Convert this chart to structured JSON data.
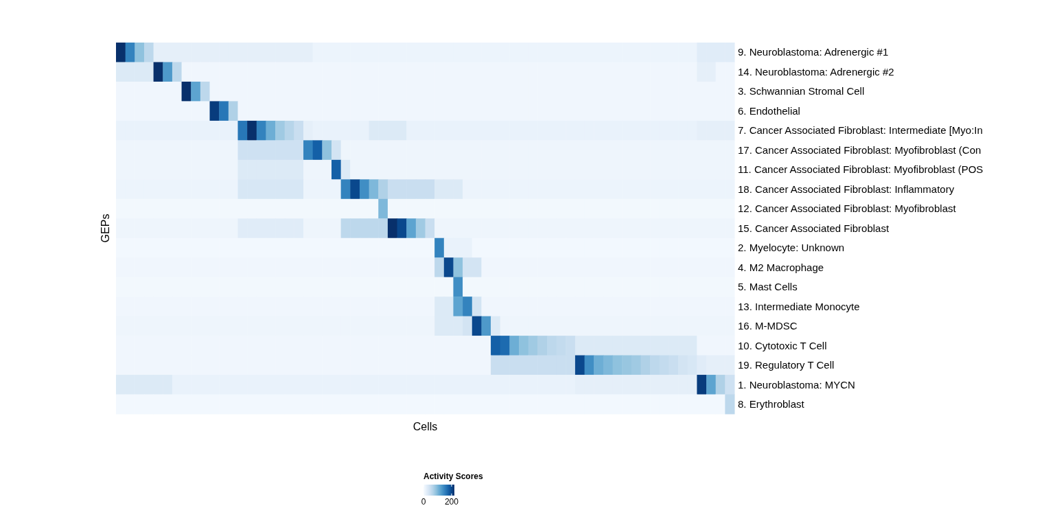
{
  "chart_data": {
    "type": "heatmap",
    "xlabel": "Cells",
    "ylabel": "GEPs",
    "clabel": "Activity Scores",
    "clim": [
      0,
      220
    ],
    "cticks": [
      0,
      200
    ],
    "categories": [
      null,
      null,
      null,
      null,
      null,
      null,
      null,
      null,
      null,
      null,
      null,
      null,
      null,
      null,
      null,
      null,
      null,
      null,
      null,
      null,
      null,
      null,
      null,
      null,
      null,
      null,
      null,
      null,
      null,
      null,
      null,
      null,
      null,
      null,
      null,
      null,
      null,
      null,
      null,
      null,
      null,
      null,
      null,
      null,
      null,
      null,
      null,
      null,
      null,
      null,
      null,
      null,
      null,
      null,
      null,
      null,
      null,
      null,
      null,
      null,
      null,
      null,
      null,
      null,
      null,
      null
    ],
    "y_categories": [
      "9. Neuroblastoma: Adrenergic #1",
      "14. Neuroblastoma: Adrenergic #2",
      "3. Schwannian Stromal Cell",
      "6. Endothelial",
      "7. Cancer Associated Fibroblast: Intermediate [Myo:In",
      "17. Cancer Associated Fibroblast: Myofibroblast (Con",
      "11. Cancer Associated Fibroblast: Myofibroblast (POS",
      "18. Cancer Associated Fibroblast: Inflammatory",
      "12. Cancer Associated Fibroblast: Myofibroblast",
      "15. Cancer Associated Fibroblast",
      "2. Myelocyte: Unknown",
      "4. M2 Macrophage",
      "5. Mast Cells",
      "13. Intermediate Monocyte",
      "16. M-MDSC",
      "10. Cytotoxic T Cell",
      "19. Regulatory T Cell",
      "1. Neuroblastoma: MYCN",
      "8. Erythroblast"
    ],
    "cells": [
      [
        220,
        150,
        90,
        60,
        20,
        20,
        20,
        20,
        20,
        20,
        20,
        20,
        20,
        20,
        20,
        20,
        20,
        20,
        20,
        20,
        20,
        12,
        12,
        12,
        12,
        12,
        12,
        12,
        12,
        12,
        12,
        12,
        12,
        12,
        12,
        12,
        12,
        12,
        12,
        12,
        12,
        12,
        12,
        12,
        12,
        12,
        12,
        12,
        12,
        12,
        12,
        12,
        12,
        12,
        12,
        12,
        12,
        12,
        12,
        12,
        12,
        12,
        25,
        25,
        25,
        25
      ],
      [
        30,
        30,
        30,
        30,
        220,
        130,
        60,
        8,
        8,
        8,
        8,
        8,
        8,
        8,
        8,
        8,
        8,
        8,
        8,
        8,
        8,
        8,
        8,
        8,
        8,
        8,
        8,
        8,
        8,
        8,
        8,
        8,
        8,
        8,
        8,
        8,
        8,
        8,
        8,
        8,
        8,
        8,
        8,
        8,
        8,
        8,
        8,
        8,
        8,
        8,
        8,
        8,
        8,
        8,
        8,
        8,
        8,
        8,
        8,
        8,
        8,
        8,
        20,
        20,
        8,
        8
      ],
      [
        8,
        8,
        8,
        8,
        8,
        8,
        8,
        220,
        120,
        60,
        8,
        8,
        8,
        8,
        8,
        8,
        8,
        8,
        8,
        8,
        8,
        8,
        8,
        8,
        8,
        8,
        8,
        8,
        8,
        8,
        8,
        8,
        8,
        8,
        8,
        8,
        8,
        8,
        8,
        8,
        8,
        8,
        8,
        8,
        8,
        8,
        8,
        8,
        8,
        8,
        8,
        8,
        8,
        8,
        8,
        8,
        8,
        8,
        8,
        8,
        8,
        8,
        8,
        8,
        8,
        8
      ],
      [
        8,
        8,
        8,
        8,
        8,
        8,
        8,
        8,
        8,
        8,
        210,
        160,
        70,
        8,
        8,
        8,
        8,
        8,
        8,
        8,
        8,
        8,
        8,
        8,
        8,
        8,
        8,
        8,
        8,
        8,
        8,
        8,
        8,
        8,
        8,
        8,
        8,
        8,
        8,
        8,
        8,
        8,
        8,
        8,
        8,
        8,
        8,
        8,
        8,
        8,
        8,
        8,
        8,
        8,
        8,
        8,
        8,
        8,
        8,
        8,
        8,
        8,
        8,
        8,
        8,
        8
      ],
      [
        15,
        15,
        15,
        15,
        15,
        15,
        15,
        15,
        15,
        15,
        15,
        15,
        15,
        160,
        220,
        150,
        110,
        80,
        65,
        50,
        20,
        15,
        15,
        15,
        15,
        15,
        15,
        30,
        30,
        30,
        30,
        15,
        15,
        15,
        15,
        15,
        15,
        15,
        15,
        15,
        15,
        15,
        15,
        15,
        15,
        15,
        15,
        15,
        15,
        15,
        15,
        15,
        15,
        15,
        15,
        15,
        15,
        15,
        15,
        15,
        15,
        15,
        20,
        20,
        20,
        20
      ],
      [
        10,
        10,
        10,
        10,
        10,
        10,
        10,
        10,
        10,
        10,
        10,
        10,
        10,
        45,
        45,
        45,
        45,
        45,
        45,
        45,
        150,
        180,
        90,
        40,
        10,
        10,
        10,
        10,
        10,
        10,
        10,
        10,
        10,
        10,
        10,
        10,
        10,
        10,
        10,
        10,
        10,
        10,
        10,
        10,
        10,
        10,
        10,
        10,
        10,
        10,
        10,
        10,
        10,
        10,
        10,
        10,
        10,
        10,
        10,
        10,
        10,
        10,
        10,
        10,
        10,
        10
      ],
      [
        10,
        10,
        10,
        10,
        10,
        10,
        10,
        10,
        10,
        10,
        10,
        10,
        10,
        30,
        30,
        30,
        30,
        30,
        30,
        30,
        10,
        10,
        10,
        180,
        30,
        10,
        10,
        10,
        10,
        10,
        10,
        10,
        10,
        10,
        10,
        10,
        10,
        10,
        10,
        10,
        10,
        10,
        10,
        10,
        10,
        10,
        10,
        10,
        10,
        10,
        10,
        10,
        10,
        10,
        10,
        10,
        10,
        10,
        10,
        10,
        10,
        10,
        10,
        10,
        10,
        10
      ],
      [
        12,
        12,
        12,
        12,
        12,
        12,
        12,
        12,
        12,
        12,
        12,
        12,
        12,
        35,
        35,
        35,
        35,
        35,
        35,
        35,
        12,
        12,
        12,
        12,
        150,
        200,
        140,
        100,
        70,
        50,
        50,
        50,
        50,
        50,
        30,
        30,
        30,
        12,
        12,
        12,
        12,
        12,
        12,
        12,
        12,
        12,
        12,
        12,
        12,
        12,
        12,
        12,
        12,
        12,
        12,
        12,
        12,
        12,
        12,
        12,
        12,
        12,
        12,
        12,
        12,
        12
      ],
      [
        6,
        6,
        6,
        6,
        6,
        6,
        6,
        6,
        6,
        6,
        6,
        6,
        6,
        6,
        6,
        6,
        6,
        6,
        6,
        6,
        6,
        6,
        6,
        6,
        6,
        6,
        6,
        6,
        100,
        6,
        6,
        6,
        6,
        6,
        6,
        6,
        6,
        6,
        6,
        6,
        6,
        6,
        6,
        6,
        6,
        6,
        6,
        6,
        6,
        6,
        6,
        6,
        6,
        6,
        6,
        6,
        6,
        6,
        6,
        6,
        6,
        6,
        6,
        6,
        6,
        6
      ],
      [
        10,
        10,
        10,
        10,
        10,
        10,
        10,
        10,
        10,
        10,
        10,
        10,
        10,
        25,
        25,
        25,
        25,
        25,
        25,
        25,
        10,
        10,
        10,
        10,
        60,
        60,
        60,
        60,
        60,
        220,
        200,
        120,
        80,
        50,
        10,
        10,
        10,
        10,
        10,
        10,
        10,
        10,
        10,
        10,
        10,
        10,
        10,
        10,
        10,
        10,
        10,
        10,
        10,
        10,
        10,
        10,
        10,
        10,
        10,
        10,
        10,
        10,
        10,
        10,
        10,
        10
      ],
      [
        5,
        5,
        5,
        5,
        5,
        5,
        5,
        5,
        5,
        5,
        5,
        5,
        5,
        5,
        5,
        5,
        5,
        5,
        5,
        5,
        5,
        5,
        5,
        5,
        5,
        5,
        5,
        5,
        5,
        5,
        5,
        5,
        5,
        5,
        150,
        15,
        15,
        15,
        5,
        5,
        5,
        5,
        5,
        5,
        5,
        5,
        5,
        5,
        5,
        5,
        5,
        5,
        5,
        5,
        5,
        5,
        5,
        5,
        5,
        5,
        5,
        5,
        5,
        5,
        5,
        5
      ],
      [
        8,
        8,
        8,
        8,
        8,
        8,
        8,
        8,
        8,
        8,
        8,
        8,
        8,
        8,
        8,
        8,
        8,
        8,
        8,
        8,
        8,
        8,
        8,
        8,
        8,
        8,
        8,
        8,
        8,
        8,
        8,
        8,
        8,
        8,
        60,
        200,
        90,
        40,
        40,
        8,
        8,
        8,
        8,
        8,
        8,
        8,
        8,
        8,
        8,
        8,
        8,
        8,
        8,
        8,
        8,
        8,
        8,
        8,
        8,
        8,
        8,
        8,
        8,
        8,
        8,
        8
      ],
      [
        6,
        6,
        6,
        6,
        6,
        6,
        6,
        6,
        6,
        6,
        6,
        6,
        6,
        6,
        6,
        6,
        6,
        6,
        6,
        6,
        6,
        6,
        6,
        6,
        6,
        6,
        6,
        6,
        6,
        6,
        6,
        6,
        6,
        6,
        6,
        6,
        140,
        6,
        6,
        6,
        6,
        6,
        6,
        6,
        6,
        6,
        6,
        6,
        6,
        6,
        6,
        6,
        6,
        6,
        6,
        6,
        6,
        6,
        6,
        6,
        6,
        6,
        6,
        6,
        6,
        6
      ],
      [
        8,
        8,
        8,
        8,
        8,
        8,
        8,
        8,
        8,
        8,
        8,
        8,
        8,
        8,
        8,
        8,
        8,
        8,
        8,
        8,
        8,
        8,
        8,
        8,
        8,
        8,
        8,
        8,
        8,
        8,
        8,
        8,
        8,
        8,
        30,
        30,
        120,
        150,
        40,
        8,
        8,
        8,
        8,
        8,
        8,
        8,
        8,
        8,
        8,
        8,
        8,
        8,
        8,
        8,
        8,
        8,
        8,
        8,
        8,
        8,
        8,
        8,
        8,
        8,
        8,
        8
      ],
      [
        10,
        10,
        10,
        10,
        10,
        10,
        10,
        10,
        10,
        10,
        10,
        10,
        10,
        10,
        10,
        10,
        10,
        10,
        10,
        10,
        10,
        10,
        10,
        10,
        10,
        10,
        10,
        10,
        10,
        10,
        10,
        10,
        10,
        10,
        30,
        30,
        30,
        40,
        200,
        130,
        30,
        10,
        10,
        10,
        10,
        10,
        10,
        10,
        10,
        10,
        10,
        10,
        10,
        10,
        10,
        10,
        10,
        10,
        10,
        10,
        10,
        10,
        10,
        10,
        10,
        10
      ],
      [
        8,
        8,
        8,
        8,
        8,
        8,
        8,
        8,
        8,
        8,
        8,
        8,
        8,
        8,
        8,
        8,
        8,
        8,
        8,
        8,
        8,
        8,
        8,
        8,
        8,
        8,
        8,
        8,
        8,
        8,
        8,
        8,
        8,
        8,
        8,
        8,
        8,
        8,
        8,
        8,
        180,
        170,
        110,
        90,
        80,
        70,
        60,
        55,
        50,
        30,
        30,
        30,
        30,
        30,
        30,
        30,
        30,
        30,
        30,
        30,
        30,
        30,
        8,
        8,
        8,
        8
      ],
      [
        8,
        8,
        8,
        8,
        8,
        8,
        8,
        8,
        8,
        8,
        8,
        8,
        8,
        8,
        8,
        8,
        8,
        8,
        8,
        8,
        8,
        8,
        8,
        8,
        8,
        8,
        8,
        8,
        8,
        8,
        8,
        8,
        8,
        8,
        8,
        8,
        8,
        8,
        8,
        8,
        50,
        50,
        50,
        50,
        50,
        50,
        50,
        50,
        50,
        200,
        140,
        110,
        100,
        90,
        85,
        80,
        70,
        60,
        55,
        50,
        40,
        35,
        25,
        20,
        20,
        20
      ],
      [
        30,
        30,
        30,
        30,
        30,
        30,
        15,
        15,
        15,
        15,
        15,
        15,
        15,
        15,
        15,
        15,
        15,
        15,
        15,
        15,
        15,
        15,
        15,
        15,
        15,
        15,
        15,
        15,
        15,
        15,
        15,
        15,
        15,
        15,
        15,
        15,
        15,
        15,
        15,
        15,
        15,
        15,
        15,
        15,
        15,
        15,
        15,
        15,
        15,
        20,
        20,
        20,
        20,
        20,
        20,
        20,
        20,
        20,
        20,
        20,
        20,
        20,
        210,
        120,
        70,
        45
      ],
      [
        5,
        5,
        5,
        5,
        5,
        5,
        5,
        5,
        5,
        5,
        5,
        5,
        5,
        5,
        5,
        5,
        5,
        5,
        5,
        5,
        5,
        5,
        5,
        5,
        5,
        5,
        5,
        5,
        5,
        5,
        5,
        5,
        5,
        5,
        5,
        5,
        5,
        5,
        5,
        5,
        5,
        5,
        5,
        5,
        5,
        5,
        5,
        5,
        5,
        5,
        5,
        5,
        5,
        5,
        5,
        5,
        5,
        5,
        5,
        5,
        5,
        5,
        5,
        5,
        5,
        60
      ]
    ]
  }
}
